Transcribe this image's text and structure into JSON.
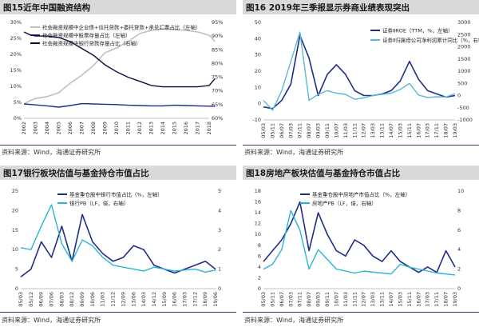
{
  "source_label": "资料来源：Wind，海通证券研究所",
  "panels": [
    {
      "id": "p15",
      "title": "图15近年中国融资结构",
      "chart_data": {
        "type": "line",
        "x": [
          "2002",
          "2003",
          "2004",
          "2005",
          "2006",
          "2007",
          "2008",
          "2009",
          "2010",
          "2011",
          "2012",
          "2013",
          "2014",
          "2015",
          "2016",
          "2017",
          "2018"
        ],
        "ylim_left": [
          0,
          30
        ],
        "yticks_left": [
          "0%",
          "5%",
          "10%",
          "15%",
          "20%",
          "25%",
          "30%"
        ],
        "ylim_right": [
          60,
          95
        ],
        "yticks_right": [
          "60%",
          "65%",
          "70%",
          "75%",
          "80%",
          "85%",
          "90%",
          "95%"
        ],
        "series": [
          {
            "name": "社会融资规模中企业债+信托贷款+委托贷款+承兑汇票占比（左轴）",
            "axis": "left",
            "color": "#bfbfbf",
            "x": [
              0,
              0.5,
              1,
              2,
              3,
              4,
              5,
              6,
              7,
              8,
              9,
              10,
              11,
              12,
              13,
              14,
              15,
              16,
              16.5
            ],
            "values": [
              4.5,
              5.5,
              6.2,
              6.8,
              8,
              11,
              13.5,
              16.5,
              20.5,
              22,
              24,
              26.5,
              27.5,
              28,
              27.8,
              27.5,
              27,
              26,
              24
            ]
          },
          {
            "name": "社会融资规模中股票存量占比（左轴）",
            "axis": "left",
            "color": "#1f2d8a",
            "x": [
              0,
              1,
              2,
              3,
              4,
              5,
              6,
              7,
              8,
              9,
              10,
              11,
              12,
              13,
              14,
              15,
              16,
              16.5
            ],
            "values": [
              4.5,
              4.2,
              3.9,
              3.5,
              4,
              4.6,
              4.5,
              4.4,
              4.3,
              4.1,
              4,
              3.9,
              3.9,
              4.1,
              4,
              3.9,
              3.8,
              3.8
            ]
          },
          {
            "name": "社会融资规模中银行贷款存量占比（右轴）",
            "axis": "right",
            "color": "#0b0b3a",
            "x": [
              0,
              0.5,
              1,
              2,
              3,
              4,
              5,
              6,
              7,
              8,
              9,
              10,
              11,
              12,
              13,
              14,
              15,
              16,
              16.5
            ],
            "values": [
              91.5,
              90.5,
              90,
              90,
              89.5,
              88,
              85.5,
              83,
              79.5,
              77,
              75,
              73.5,
              72,
              71.5,
              71.5,
              71.5,
              71.5,
              72,
              74.5
            ]
          }
        ]
      }
    },
    {
      "id": "p16",
      "title": "图16 2019年三季报显示券商业绩表现突出",
      "chart_data": {
        "type": "line",
        "x": [
          "05/03",
          "05/11",
          "06/07",
          "07/03",
          "07/11",
          "08/07",
          "09/03",
          "09/11",
          "10/07",
          "11/03",
          "11/11",
          "12/07",
          "13/03",
          "13/11",
          "14/07",
          "15/03",
          "15/11",
          "16/07",
          "17/03",
          "17/11",
          "18/07",
          "19/03"
        ],
        "ylim_left": [
          -10,
          50
        ],
        "yticks_left": [
          "-10",
          "0",
          "10",
          "20",
          "30",
          "40",
          "50"
        ],
        "ylim_right": [
          -1000,
          3000
        ],
        "yticks_right": [
          "-1000",
          "-500",
          "0",
          "500",
          "1000",
          "1500",
          "2000",
          "2500",
          "3000"
        ],
        "series": [
          {
            "name": "证券ⅡROE（TTM，%，左轴）",
            "axis": "left",
            "color": "#1f2d8a",
            "x": [
              0,
              1,
              2,
              3,
              4,
              5,
              6,
              7,
              8,
              9,
              10,
              11,
              12,
              13,
              14,
              15,
              16,
              17,
              18,
              19,
              20,
              21
            ],
            "values": [
              -2,
              -3,
              2,
              12,
              42,
              28,
              5,
              18,
              24,
              18,
              8,
              5,
              5,
              6,
              8,
              14,
              26,
              15,
              8,
              6,
              4,
              5
            ]
          },
          {
            "name": "证券Ⅱ归属母公司净利润累计同比（%，右轴）",
            "axis": "right",
            "color": "#5bb8d6",
            "x": [
              0,
              1,
              2,
              3,
              4,
              5,
              6,
              7,
              8,
              9,
              10,
              11,
              12,
              13,
              14,
              15,
              16,
              17,
              18,
              19,
              20,
              21
            ],
            "values": [
              -200,
              -600,
              200,
              1400,
              2600,
              -200,
              50,
              200,
              100,
              50,
              -150,
              -100,
              0,
              50,
              100,
              250,
              500,
              20,
              -80,
              -50,
              -60,
              80
            ]
          }
        ]
      }
    },
    {
      "id": "p17",
      "title": "图17银行板块估值与基金持仓市值占比",
      "chart_data": {
        "type": "line",
        "x": [
          "05/03",
          "05/12",
          "06/09",
          "07/06",
          "08/03",
          "08/12",
          "09/09",
          "10/06",
          "11/03",
          "11/12",
          "12/09",
          "13/06",
          "14/03",
          "14/12",
          "15/09",
          "16/06",
          "17/03",
          "17/12",
          "18/09",
          "19/06"
        ],
        "ylim_left": [
          0,
          25
        ],
        "yticks_left": [
          "0",
          "5",
          "10",
          "15",
          "20",
          "25"
        ],
        "ylim_right": [
          0,
          5
        ],
        "yticks_right": [
          "0",
          "1",
          "2",
          "3",
          "4",
          "5"
        ],
        "series": [
          {
            "name": "基金重仓股中银行市值占比（%，左轴）",
            "axis": "left",
            "color": "#1f2d8a",
            "x": [
              0,
              1,
              2,
              3,
              4,
              5,
              6,
              7,
              8,
              9,
              10,
              11,
              12,
              13,
              14,
              15,
              16,
              17,
              18,
              19
            ],
            "values": [
              3,
              5,
              12,
              8,
              16,
              7,
              19,
              12,
              9,
              7,
              8,
              11,
              10,
              6,
              5,
              4,
              5,
              6,
              7,
              5
            ]
          },
          {
            "name": "银行PB（LF，倍，右轴）",
            "axis": "right",
            "color": "#29b6d1",
            "x": [
              0,
              1,
              2,
              3,
              4,
              5,
              6,
              7,
              8,
              9,
              10,
              11,
              12,
              13,
              14,
              15,
              16,
              17,
              18,
              19
            ],
            "values": [
              2.1,
              2.0,
              3.2,
              4.3,
              2.3,
              1.4,
              2.5,
              2.2,
              1.6,
              1.2,
              1.1,
              1.0,
              0.9,
              1.1,
              1.0,
              0.9,
              0.95,
              1.0,
              0.85,
              0.95
            ]
          }
        ]
      }
    },
    {
      "id": "p18",
      "title": "图18房地产板块估值与基金持仓市值占比",
      "chart_data": {
        "type": "line",
        "x": [
          "05/03",
          "05/11",
          "06/07",
          "07/03",
          "07/11",
          "08/07",
          "09/03",
          "09/11",
          "10/07",
          "11/03",
          "11/11",
          "12/07",
          "13/03",
          "13/11",
          "14/07",
          "15/03",
          "15/11",
          "16/07",
          "17/03",
          "17/11",
          "18/07",
          "19/03"
        ],
        "ylim_left": [
          0,
          18
        ],
        "yticks_left": [
          "0",
          "2",
          "4",
          "6",
          "8",
          "10",
          "12",
          "14",
          "16",
          "18"
        ],
        "ylim_right": [
          0,
          10
        ],
        "yticks_right": [
          "0",
          "2",
          "4",
          "6",
          "8",
          "10"
        ],
        "series": [
          {
            "name": "基金重仓股中房地产市值占比（%，左轴）",
            "axis": "left",
            "color": "#1f2d8a",
            "x": [
              0,
              1,
              2,
              3,
              4,
              5,
              6,
              7,
              8,
              9,
              10,
              11,
              12,
              13,
              14,
              15,
              16,
              17,
              18,
              19,
              20,
              21
            ],
            "values": [
              5,
              7,
              9,
              12,
              16,
              7,
              14,
              10,
              7,
              6,
              9,
              8,
              6,
              5,
              7,
              5,
              4,
              3,
              4,
              3,
              7,
              4
            ]
          },
          {
            "name": "房地产PB（LF，倍，右轴）",
            "axis": "right",
            "color": "#29b6d1",
            "x": [
              0,
              1,
              2,
              3,
              4,
              5,
              6,
              7,
              8,
              9,
              10,
              11,
              12,
              13,
              14,
              15,
              16,
              17,
              18,
              19,
              20,
              21
            ],
            "values": [
              2,
              2.5,
              4,
              8,
              6,
              2,
              4,
              3,
              2,
              1.8,
              1.6,
              1.8,
              1.7,
              1.6,
              1.5,
              2.5,
              2.2,
              2.0,
              1.8,
              1.6,
              1.5,
              1.4
            ]
          }
        ]
      }
    }
  ]
}
